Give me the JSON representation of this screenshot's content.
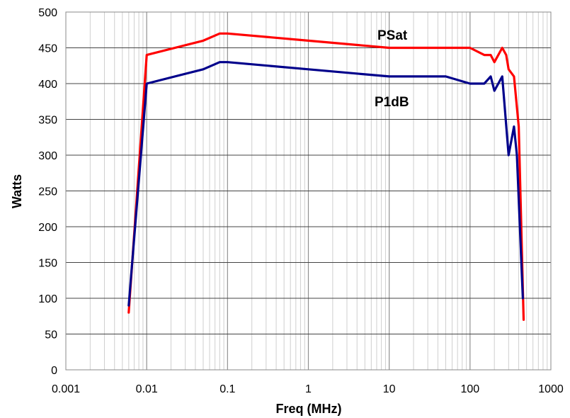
{
  "chart_data": {
    "type": "line",
    "xlabel": "Freq (MHz)",
    "ylabel": "Watts",
    "x_scale": "log",
    "xlim": [
      0.001,
      1000
    ],
    "ylim": [
      0,
      500
    ],
    "x_ticks": [
      "0.001",
      "0.01",
      "0.1",
      "1",
      "10",
      "100",
      "1000"
    ],
    "y_ticks": [
      "0",
      "50",
      "100",
      "150",
      "200",
      "250",
      "300",
      "350",
      "400",
      "450",
      "500"
    ],
    "grid": true,
    "series": [
      {
        "name": "PSat",
        "color": "#ff0000",
        "points": [
          [
            0.006,
            80
          ],
          [
            0.01,
            440
          ],
          [
            0.05,
            460
          ],
          [
            0.08,
            470
          ],
          [
            0.1,
            470
          ],
          [
            1,
            460
          ],
          [
            10,
            450
          ],
          [
            100,
            450
          ],
          [
            150,
            440
          ],
          [
            180,
            440
          ],
          [
            200,
            430
          ],
          [
            250,
            450
          ],
          [
            280,
            440
          ],
          [
            300,
            420
          ],
          [
            350,
            410
          ],
          [
            400,
            340
          ],
          [
            460,
            70
          ]
        ]
      },
      {
        "name": "P1dB",
        "color": "#00008b",
        "points": [
          [
            0.006,
            90
          ],
          [
            0.01,
            400
          ],
          [
            0.05,
            420
          ],
          [
            0.08,
            430
          ],
          [
            0.1,
            430
          ],
          [
            1,
            420
          ],
          [
            10,
            410
          ],
          [
            50,
            410
          ],
          [
            100,
            400
          ],
          [
            150,
            400
          ],
          [
            180,
            410
          ],
          [
            200,
            390
          ],
          [
            250,
            410
          ],
          [
            300,
            300
          ],
          [
            350,
            340
          ],
          [
            380,
            300
          ],
          [
            450,
            100
          ]
        ]
      }
    ]
  }
}
